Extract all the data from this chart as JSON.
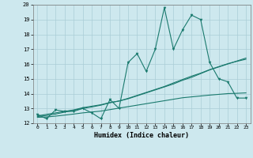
{
  "title": "",
  "xlabel": "Humidex (Indice chaleur)",
  "ylabel": "",
  "xlim": [
    -0.5,
    23.5
  ],
  "ylim": [
    12,
    20
  ],
  "yticks": [
    12,
    13,
    14,
    15,
    16,
    17,
    18,
    19,
    20
  ],
  "xticks": [
    0,
    1,
    2,
    3,
    4,
    5,
    6,
    7,
    8,
    9,
    10,
    11,
    12,
    13,
    14,
    15,
    16,
    17,
    18,
    19,
    20,
    21,
    22,
    23
  ],
  "background_color": "#cde8ee",
  "grid_color": "#aacdd6",
  "line_color": "#1a7a6e",
  "series": {
    "main": [
      12.6,
      12.3,
      12.9,
      12.8,
      12.8,
      13.0,
      12.7,
      12.3,
      13.6,
      13.0,
      16.1,
      16.7,
      15.5,
      17.0,
      19.8,
      17.0,
      18.3,
      19.3,
      19.0,
      16.1,
      15.0,
      14.8,
      13.7,
      13.7
    ],
    "trend1": [
      12.5,
      12.6,
      12.7,
      12.8,
      12.9,
      13.05,
      13.15,
      13.25,
      13.4,
      13.5,
      13.65,
      13.85,
      14.05,
      14.25,
      14.45,
      14.65,
      14.9,
      15.1,
      15.35,
      15.6,
      15.8,
      16.0,
      16.2,
      16.4
    ],
    "trend2": [
      12.45,
      12.52,
      12.62,
      12.75,
      12.88,
      13.0,
      13.1,
      13.22,
      13.38,
      13.5,
      13.68,
      13.88,
      14.08,
      14.28,
      14.48,
      14.72,
      14.95,
      15.18,
      15.38,
      15.62,
      15.82,
      16.02,
      16.18,
      16.32
    ],
    "lower": [
      12.4,
      12.42,
      12.48,
      12.55,
      12.62,
      12.7,
      12.76,
      12.82,
      12.92,
      13.02,
      13.12,
      13.22,
      13.32,
      13.42,
      13.52,
      13.62,
      13.72,
      13.78,
      13.84,
      13.9,
      13.95,
      14.0,
      14.02,
      14.05
    ]
  }
}
